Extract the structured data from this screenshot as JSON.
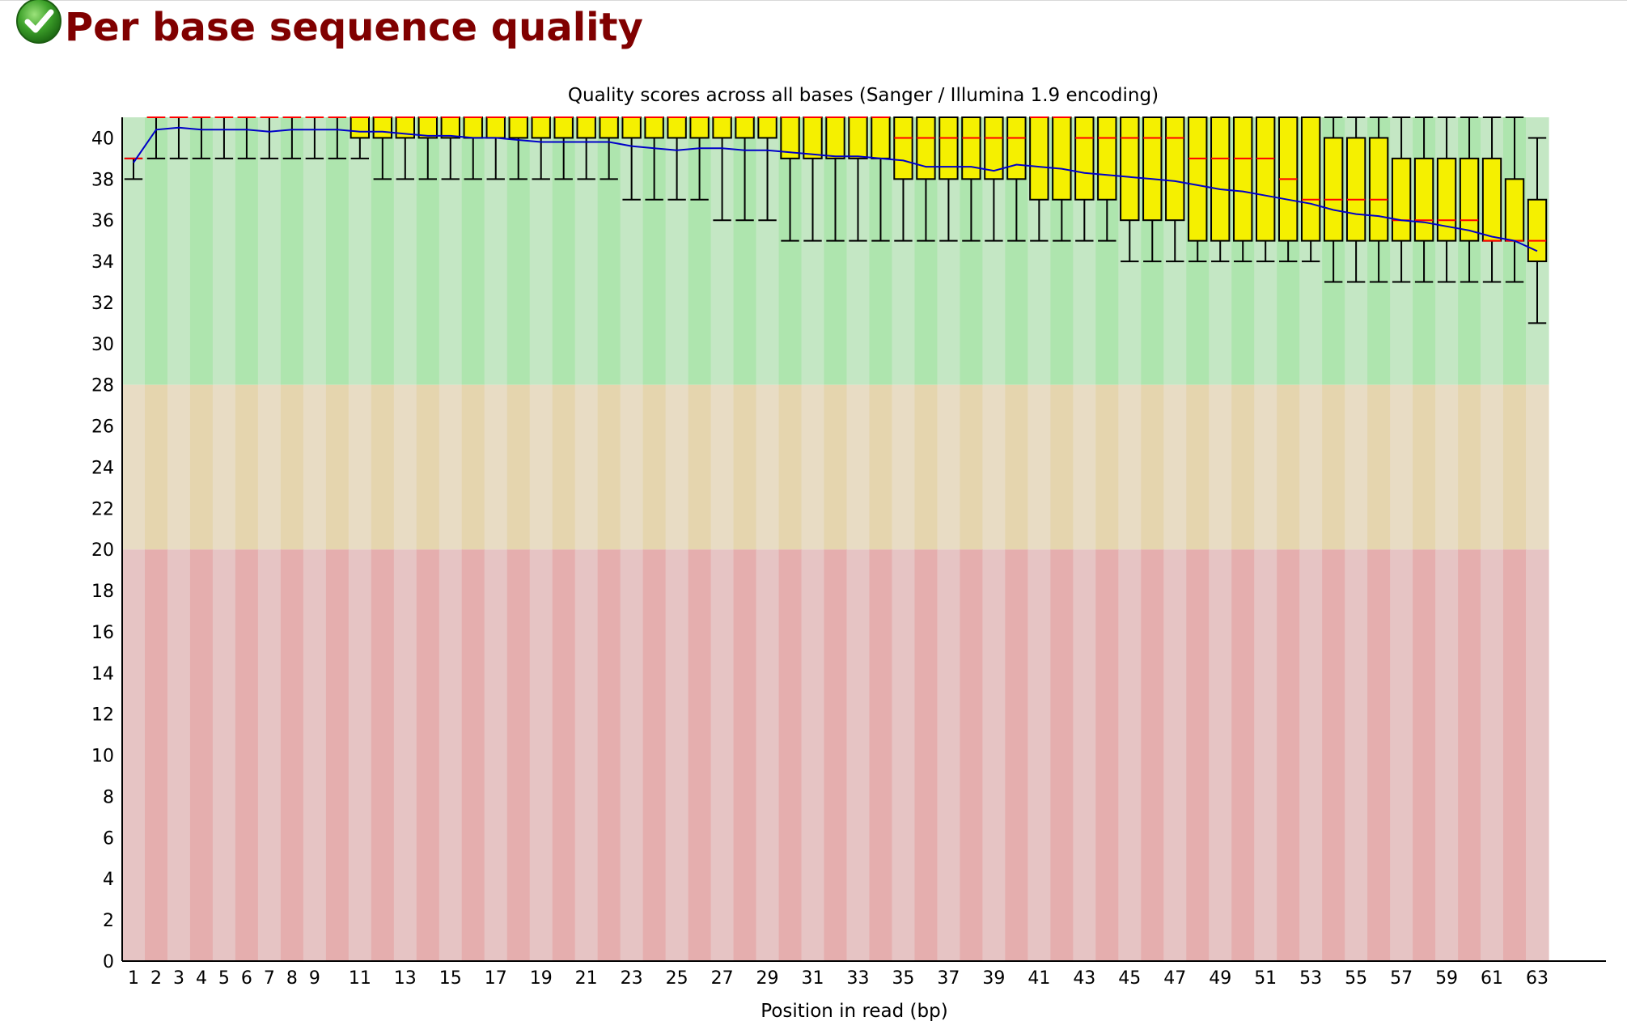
{
  "section": {
    "title": "Per base sequence quality",
    "status_icon": "check-icon",
    "status": "pass"
  },
  "colors": {
    "good_band_light": "#c4e7c4",
    "good_band_dark": "#aee5ae",
    "warn_band_light": "#e8dcc4",
    "warn_band_dark": "#e5d5ae",
    "bad_band_light": "#e6c4c4",
    "bad_band_dark": "#e5aeae",
    "box_fill": "#f5f000",
    "median": "#ff0000",
    "mean_line": "#0000c8",
    "heading": "#800000"
  },
  "chart_data": {
    "type": "boxplot",
    "title": "Quality scores across all bases (Sanger / Illumina 1.9 encoding)",
    "xlabel": "Position in read (bp)",
    "ylabel": "",
    "ylim": [
      0,
      41
    ],
    "yticks": [
      0,
      2,
      4,
      6,
      8,
      10,
      12,
      14,
      16,
      18,
      20,
      22,
      24,
      26,
      28,
      30,
      32,
      34,
      36,
      38,
      40
    ],
    "categories": [
      "1",
      "2",
      "3",
      "4",
      "5",
      "6",
      "7",
      "8",
      "9",
      "10",
      "11",
      "12",
      "13",
      "14",
      "15",
      "16",
      "17",
      "18",
      "19",
      "20",
      "21",
      "22",
      "23",
      "24",
      "25",
      "26",
      "27",
      "28",
      "29",
      "30",
      "31",
      "32",
      "33",
      "34",
      "35",
      "36",
      "37",
      "38",
      "39",
      "40",
      "41",
      "42",
      "43",
      "44",
      "45",
      "46",
      "47",
      "48",
      "49",
      "50",
      "51",
      "52",
      "53",
      "54",
      "55",
      "56",
      "57",
      "58",
      "59",
      "60",
      "61",
      "62",
      "63"
    ],
    "xtick_labels": [
      "1",
      "2",
      "3",
      "4",
      "5",
      "6",
      "7",
      "8",
      "9",
      "11",
      "13",
      "15",
      "17",
      "19",
      "21",
      "23",
      "25",
      "27",
      "29",
      "31",
      "33",
      "35",
      "37",
      "39",
      "41",
      "43",
      "45",
      "47",
      "49",
      "51",
      "53",
      "55",
      "57",
      "59",
      "61",
      "63"
    ],
    "bands": [
      {
        "name": "good",
        "from": 28,
        "to": 41
      },
      {
        "name": "warning",
        "from": 20,
        "to": 28
      },
      {
        "name": "poor",
        "from": 0,
        "to": 20
      }
    ],
    "median": [
      39,
      41,
      41,
      41,
      41,
      41,
      41,
      41,
      41,
      41,
      41,
      41,
      41,
      41,
      41,
      41,
      41,
      41,
      41,
      41,
      41,
      41,
      41,
      41,
      41,
      41,
      41,
      41,
      41,
      41,
      41,
      41,
      41,
      41,
      40,
      40,
      40,
      40,
      40,
      40,
      41,
      41,
      40,
      40,
      40,
      40,
      40,
      39,
      39,
      39,
      39,
      38,
      37,
      37,
      37,
      37,
      36,
      36,
      36,
      36,
      35,
      35,
      35
    ],
    "q1": [
      39,
      41,
      41,
      41,
      41,
      41,
      41,
      41,
      41,
      41,
      40,
      40,
      40,
      40,
      40,
      40,
      40,
      40,
      40,
      40,
      40,
      40,
      40,
      40,
      40,
      40,
      40,
      40,
      40,
      39,
      39,
      39,
      39,
      39,
      38,
      38,
      38,
      38,
      38,
      38,
      37,
      37,
      37,
      37,
      36,
      36,
      36,
      35,
      35,
      35,
      35,
      35,
      35,
      35,
      35,
      35,
      35,
      35,
      35,
      35,
      35,
      35,
      34
    ],
    "q3": [
      39,
      41,
      41,
      41,
      41,
      41,
      41,
      41,
      41,
      41,
      41,
      41,
      41,
      41,
      41,
      41,
      41,
      41,
      41,
      41,
      41,
      41,
      41,
      41,
      41,
      41,
      41,
      41,
      41,
      41,
      41,
      41,
      41,
      41,
      41,
      41,
      41,
      41,
      41,
      41,
      41,
      41,
      41,
      41,
      41,
      41,
      41,
      41,
      41,
      41,
      41,
      41,
      41,
      40,
      40,
      40,
      39,
      39,
      39,
      39,
      39,
      38,
      37
    ],
    "whisker_low": [
      38,
      39,
      39,
      39,
      39,
      39,
      39,
      39,
      39,
      39,
      39,
      38,
      38,
      38,
      38,
      38,
      38,
      38,
      38,
      38,
      38,
      38,
      37,
      37,
      37,
      37,
      36,
      36,
      36,
      35,
      35,
      35,
      35,
      35,
      35,
      35,
      35,
      35,
      35,
      35,
      35,
      35,
      35,
      35,
      34,
      34,
      34,
      34,
      34,
      34,
      34,
      34,
      34,
      33,
      33,
      33,
      33,
      33,
      33,
      33,
      33,
      33,
      31
    ],
    "whisker_high": [
      39,
      41,
      41,
      41,
      41,
      41,
      41,
      41,
      41,
      41,
      41,
      41,
      41,
      41,
      41,
      41,
      41,
      41,
      41,
      41,
      41,
      41,
      41,
      41,
      41,
      41,
      41,
      41,
      41,
      41,
      41,
      41,
      41,
      41,
      41,
      41,
      41,
      41,
      41,
      41,
      41,
      41,
      41,
      41,
      41,
      41,
      41,
      41,
      41,
      41,
      41,
      41,
      41,
      41,
      41,
      41,
      41,
      41,
      41,
      41,
      41,
      41,
      40
    ],
    "mean": [
      38.8,
      40.4,
      40.5,
      40.4,
      40.4,
      40.4,
      40.3,
      40.4,
      40.4,
      40.4,
      40.3,
      40.3,
      40.2,
      40.1,
      40.1,
      40.0,
      40.0,
      39.9,
      39.8,
      39.8,
      39.8,
      39.8,
      39.6,
      39.5,
      39.4,
      39.5,
      39.5,
      39.4,
      39.4,
      39.3,
      39.2,
      39.1,
      39.1,
      39.0,
      38.9,
      38.6,
      38.6,
      38.6,
      38.4,
      38.7,
      38.6,
      38.5,
      38.3,
      38.2,
      38.1,
      38.0,
      37.9,
      37.7,
      37.5,
      37.4,
      37.2,
      37.0,
      36.8,
      36.5,
      36.3,
      36.2,
      36.0,
      35.9,
      35.7,
      35.5,
      35.2,
      35.0,
      34.5
    ]
  }
}
